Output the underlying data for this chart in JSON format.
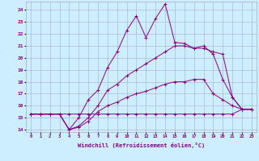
{
  "xlabel": "Windchill (Refroidissement éolien,°C)",
  "bg_color": "#cceeff",
  "grid_color": "#aaaacc",
  "line_color": "#880088",
  "xlim": [
    -0.5,
    23.5
  ],
  "ylim": [
    13.8,
    24.7
  ],
  "yticks": [
    14,
    15,
    16,
    17,
    18,
    19,
    20,
    21,
    22,
    23,
    24
  ],
  "xticks": [
    0,
    1,
    2,
    3,
    4,
    5,
    6,
    7,
    8,
    9,
    10,
    11,
    12,
    13,
    14,
    15,
    16,
    17,
    18,
    19,
    20,
    21,
    22,
    23
  ],
  "lines": [
    {
      "x": [
        0,
        1,
        2,
        3,
        4,
        5,
        6,
        7,
        8,
        9,
        10,
        11,
        12,
        13,
        14,
        15,
        16,
        17,
        18,
        19,
        20,
        21,
        22,
        23
      ],
      "y": [
        15.3,
        15.3,
        15.3,
        15.3,
        15.3,
        15.3,
        15.3,
        15.3,
        15.3,
        15.3,
        15.3,
        15.3,
        15.3,
        15.3,
        15.3,
        15.3,
        15.3,
        15.3,
        15.3,
        15.3,
        15.3,
        15.3,
        15.7,
        15.7
      ]
    },
    {
      "x": [
        0,
        1,
        2,
        3,
        4,
        5,
        6,
        7,
        8,
        9,
        10,
        11,
        12,
        13,
        14,
        15,
        16,
        17,
        18,
        19,
        20,
        21,
        22,
        23
      ],
      "y": [
        15.3,
        15.3,
        15.3,
        15.3,
        14.0,
        14.2,
        14.7,
        15.5,
        16.0,
        16.3,
        16.7,
        17.0,
        17.2,
        17.5,
        17.8,
        18.0,
        18.0,
        18.2,
        18.2,
        17.0,
        16.5,
        16.0,
        15.7,
        15.7
      ]
    },
    {
      "x": [
        0,
        1,
        2,
        3,
        4,
        5,
        6,
        7,
        8,
        9,
        10,
        11,
        12,
        13,
        14,
        15,
        16,
        17,
        18,
        19,
        20,
        21,
        22,
        23
      ],
      "y": [
        15.3,
        15.3,
        15.3,
        15.3,
        14.0,
        14.3,
        15.0,
        16.0,
        17.3,
        17.8,
        18.5,
        19.0,
        19.5,
        20.0,
        20.5,
        21.0,
        21.0,
        20.8,
        20.8,
        20.5,
        20.3,
        16.7,
        15.7,
        15.7
      ]
    },
    {
      "x": [
        0,
        1,
        2,
        3,
        4,
        5,
        6,
        7,
        8,
        9,
        10,
        11,
        12,
        13,
        14,
        15,
        16,
        17,
        18,
        19,
        20,
        21,
        22,
        23
      ],
      "y": [
        15.3,
        15.3,
        15.3,
        15.3,
        14.0,
        15.0,
        16.5,
        17.3,
        19.2,
        20.5,
        22.3,
        23.5,
        21.7,
        23.3,
        24.5,
        21.3,
        21.2,
        20.8,
        21.0,
        20.3,
        18.2,
        16.7,
        15.7,
        15.7
      ]
    }
  ]
}
